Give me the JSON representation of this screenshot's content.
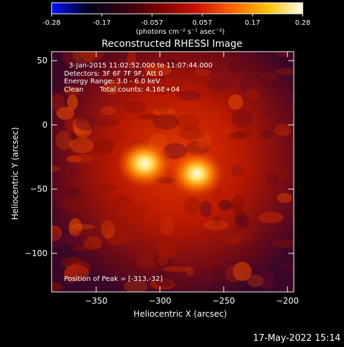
{
  "colorbar": {
    "min": -0.28,
    "max": 0.28,
    "tick_labels": [
      "-0.28",
      "-0.17",
      "-0.057",
      "0.057",
      "0.17",
      "0.28"
    ],
    "unit_label": "(photons cm⁻² s⁻¹ asec⁻²)",
    "stops": [
      "#0010ff",
      "#000020",
      "#300010",
      "#7a0000",
      "#c81000",
      "#ff6000",
      "#ffc000",
      "#fffbe8"
    ]
  },
  "chart_data": {
    "type": "heatmap",
    "title": "Reconstructed RHESSI Image",
    "xlabel": "Heliocentric X (arcsec)",
    "ylabel": "Heliocentric Y (arcsec)",
    "xlim": [
      -385,
      -195
    ],
    "ylim": [
      -130,
      57
    ],
    "x_ticks": [
      -350,
      -300,
      -250,
      -200
    ],
    "y_ticks": [
      50,
      0,
      -50,
      -100
    ],
    "x_tick_labels": [
      "−350",
      "−300",
      "−250",
      "−200"
    ],
    "y_tick_labels": [
      "50",
      "0",
      "−50",
      "−100"
    ],
    "sources": [
      {
        "x": -312,
        "y": -30,
        "peak": 0.28
      },
      {
        "x": -271,
        "y": -38,
        "peak": 0.27
      }
    ],
    "annotations": {
      "time_range": "3-Jan-2015 11:02:52.000 to 11:07:44.000",
      "detectors": "Detectors: 3F 6F 7F 9F, Att 0",
      "energy_range": "Energy Range: 3.0 - 6.0 keV",
      "method": "Clean",
      "total_counts": "Total counts: 4.16E+04",
      "peak_position": "Position of Peak = [-313,-32]"
    }
  },
  "footer": {
    "timestamp": "17-May-2022 15:14"
  }
}
